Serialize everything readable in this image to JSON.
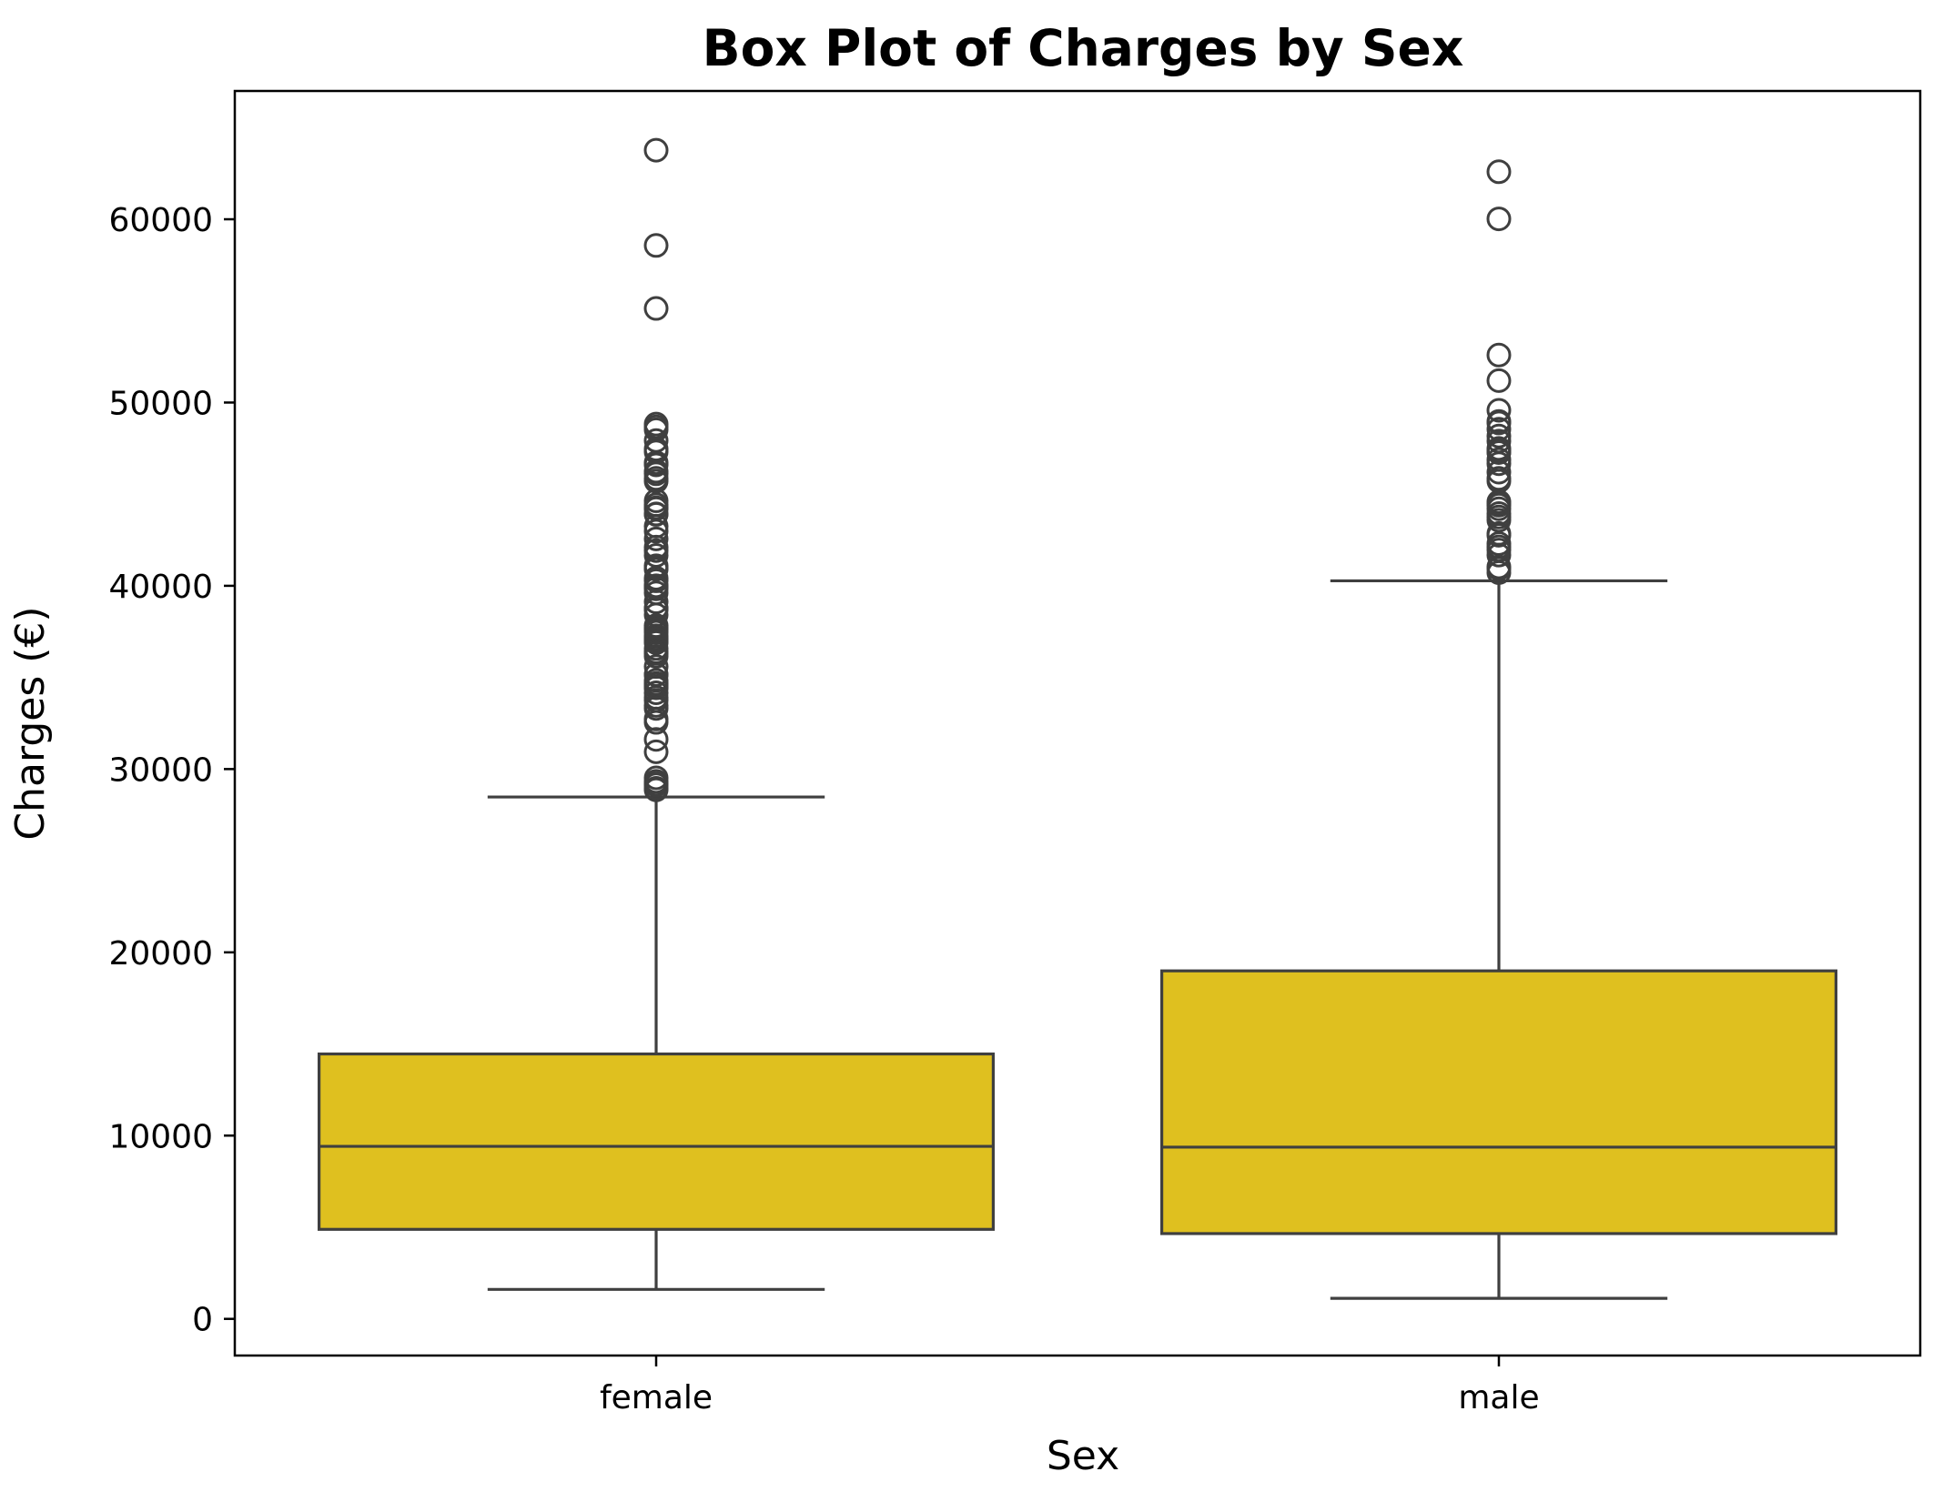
{
  "chart_data": {
    "type": "box",
    "title": "Box Plot of Charges by Sex",
    "xlabel": "Sex",
    "ylabel": "Charges (€)",
    "categories": [
      "female",
      "male"
    ],
    "ylim": [
      -2000,
      67000
    ],
    "yticks": [
      0,
      10000,
      20000,
      30000,
      40000,
      50000,
      60000
    ],
    "ytick_labels": [
      "0",
      "10000",
      "20000",
      "30000",
      "40000",
      "50000",
      "60000"
    ],
    "grid": false,
    "legend": "none",
    "colors": {
      "box_fill": "#DFC01F",
      "box_line": "#3F3F3F",
      "axis": "#000000"
    },
    "boxes": [
      {
        "category": "female",
        "whisker_low": 1608,
        "q1": 4885,
        "median": 9413,
        "q3": 14455,
        "whisker_high": 28475,
        "outliers": [
          63770,
          58571,
          55135,
          48824,
          48673,
          48517,
          47928,
          47462,
          47305,
          46718,
          46599,
          46255,
          46113,
          45863,
          45702,
          44641,
          44424,
          44260,
          44202,
          43921,
          43896,
          43254,
          42983,
          42560,
          42112,
          41919,
          41661,
          41097,
          40974,
          40904,
          40419,
          40273,
          40003,
          39983,
          39836,
          39611,
          39126,
          38792,
          38746,
          38711,
          38415,
          37829,
          37701,
          37607,
          37465,
          37270,
          37133,
          37079,
          36950,
          36898,
          36580,
          36397,
          36307,
          36149,
          35595,
          35160,
          35147,
          34838,
          34672,
          34617,
          34472,
          34439,
          34166,
          33907,
          33750,
          33475,
          33307,
          32734,
          32548,
          31620,
          30942,
          29523,
          29330,
          29186,
          29141,
          28950,
          28868
        ]
      },
      {
        "category": "male",
        "whisker_low": 1121,
        "q1": 4654,
        "median": 9370,
        "q3": 18989,
        "whisker_high": 40273,
        "outliers": [
          62593,
          60021,
          52591,
          51195,
          49577,
          48970,
          48885,
          48549,
          48174,
          47896,
          47496,
          47403,
          47291,
          47270,
          46889,
          46661,
          46200,
          45863,
          45710,
          44585,
          44501,
          44400,
          44202,
          43943,
          43753,
          43578,
          42856,
          42760,
          42303,
          42124,
          41949,
          41676,
          41034,
          40932,
          40720
        ]
      }
    ]
  }
}
